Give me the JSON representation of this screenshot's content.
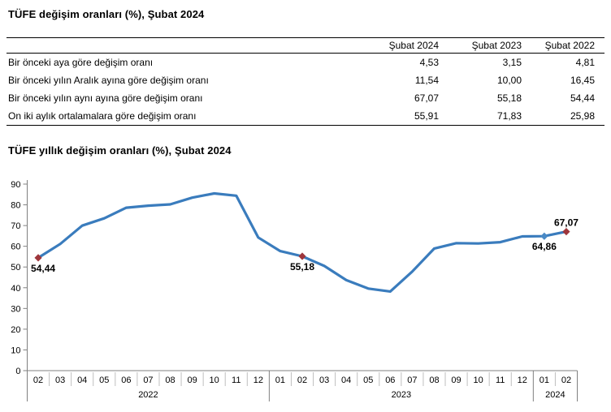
{
  "sections": {
    "table_title": "TÜFE değişim oranları (%), Şubat 2024",
    "chart_title": "TÜFE yıllık değişim oranları (%), Şubat 2024"
  },
  "table": {
    "columns": [
      "Şubat 2024",
      "Şubat 2023",
      "Şubat 2022"
    ],
    "rows": [
      {
        "label": "Bir önceki aya göre değişim oranı",
        "values": [
          "4,53",
          "3,15",
          "4,81"
        ]
      },
      {
        "label": "Bir önceki yılın Aralık ayına göre değişim oranı",
        "values": [
          "11,54",
          "10,00",
          "16,45"
        ]
      },
      {
        "label": "Bir önceki yılın aynı ayına göre değişim oranı",
        "values": [
          "67,07",
          "55,18",
          "54,44"
        ]
      },
      {
        "label": "On iki aylık ortalamalara göre değişim oranı",
        "values": [
          "55,91",
          "71,83",
          "25,98"
        ]
      }
    ]
  },
  "chart_data": {
    "type": "line",
    "title": "TÜFE yıllık değişim oranları (%), Şubat 2024",
    "xlabel": "",
    "ylabel": "",
    "ylim": [
      0,
      90
    ],
    "ytick_step": 10,
    "grid": false,
    "legend": "none",
    "line_color": "#3a7cbd",
    "highlight_marker_color": "#9e363c",
    "secondary_marker_color": "#4a8ac6",
    "axis_color": "#808080",
    "month_separator_color": "#bfbfbf",
    "year_groups": [
      {
        "year": "2022",
        "months": [
          "02",
          "03",
          "04",
          "05",
          "06",
          "07",
          "08",
          "09",
          "10",
          "11",
          "12"
        ]
      },
      {
        "year": "2023",
        "months": [
          "01",
          "02",
          "03",
          "04",
          "05",
          "06",
          "07",
          "08",
          "09",
          "10",
          "11",
          "12"
        ]
      },
      {
        "year": "2024",
        "months": [
          "01",
          "02"
        ]
      }
    ],
    "values": [
      54.44,
      61.14,
      69.97,
      73.5,
      78.62,
      79.6,
      80.21,
      83.45,
      85.51,
      84.39,
      64.27,
      57.68,
      55.18,
      50.51,
      43.68,
      39.59,
      38.21,
      47.83,
      58.94,
      61.53,
      61.36,
      61.98,
      64.77,
      64.86,
      67.07
    ],
    "labeled_points": [
      {
        "year": "2022",
        "month": "02",
        "label": "54,44",
        "marker": "highlight",
        "label_position": "below-left"
      },
      {
        "year": "2023",
        "month": "02",
        "label": "55,18",
        "marker": "highlight",
        "label_position": "below"
      },
      {
        "year": "2024",
        "month": "01",
        "label": "64,86",
        "marker": "secondary",
        "label_position": "below"
      },
      {
        "year": "2024",
        "month": "02",
        "label": "67,07",
        "marker": "highlight",
        "label_position": "above"
      }
    ]
  }
}
